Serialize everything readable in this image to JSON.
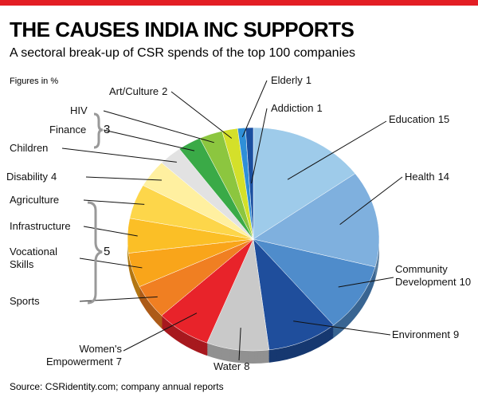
{
  "chart_data": {
    "type": "pie",
    "title": "THE CAUSES INDIA INC SUPPORTS",
    "subtitle": "A sectoral break-up of CSR spends of the top 100 companies",
    "note": "Figures in %",
    "source": "Source: CSRidentity.com; company annual reports",
    "categories": [
      "Education",
      "Health",
      "Community Development",
      "Environment",
      "Water",
      "Women's Empowerment",
      "Sports",
      "Vocational Skills",
      "Infrastructure",
      "Agriculture",
      "Disability",
      "Children",
      "Finance",
      "HIV",
      "Art/Culture",
      "Elderly",
      "Addiction"
    ],
    "values": [
      15,
      14,
      10,
      9,
      8,
      7,
      5,
      5,
      5,
      5,
      4,
      3,
      3,
      3,
      2,
      1,
      1
    ],
    "colors": [
      "#9ecbea",
      "#7fb0de",
      "#4f8ccb",
      "#1f4e9c",
      "#c9c9c9",
      "#e8232a",
      "#f07f22",
      "#f9a51a",
      "#fbbf26",
      "#fdd64a",
      "#fff0a0",
      "#e2e2e2",
      "#3aaa47",
      "#8cc63f",
      "#d4e02a",
      "#2f8fd8",
      "#1a4fa0"
    ]
  }
}
